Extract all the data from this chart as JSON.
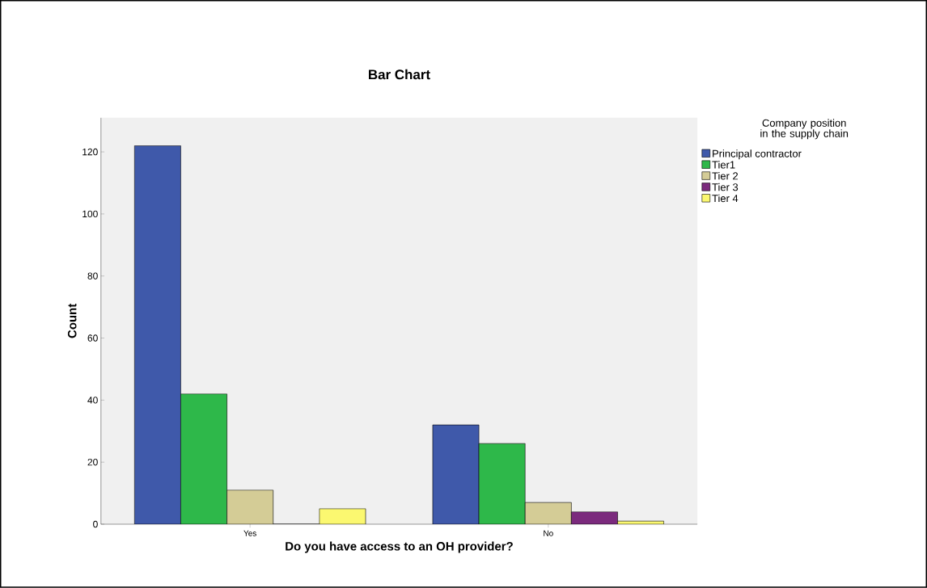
{
  "chart_data": {
    "type": "bar",
    "title": "Bar Chart",
    "xlabel": "Do you have access to an OH provider?",
    "ylabel": "Count",
    "legend_title": "Company position in the supply chain",
    "categories": [
      "Yes",
      "No"
    ],
    "series": [
      {
        "name": "Principal contractor",
        "color": "#3f59aa",
        "values": [
          122,
          32
        ]
      },
      {
        "name": "Tier1",
        "color": "#2eb84a",
        "values": [
          42,
          26
        ]
      },
      {
        "name": "Tier 2",
        "color": "#d4cc96",
        "values": [
          11,
          7
        ]
      },
      {
        "name": "Tier 3",
        "color": "#7b2a7d",
        "values": [
          0,
          4
        ]
      },
      {
        "name": "Tier 4",
        "color": "#fbf870",
        "values": [
          5,
          1
        ]
      }
    ],
    "ylim": [
      0,
      131
    ],
    "yticks": [
      0,
      20,
      40,
      60,
      80,
      100,
      120
    ],
    "grid": false,
    "legend": "top right"
  }
}
